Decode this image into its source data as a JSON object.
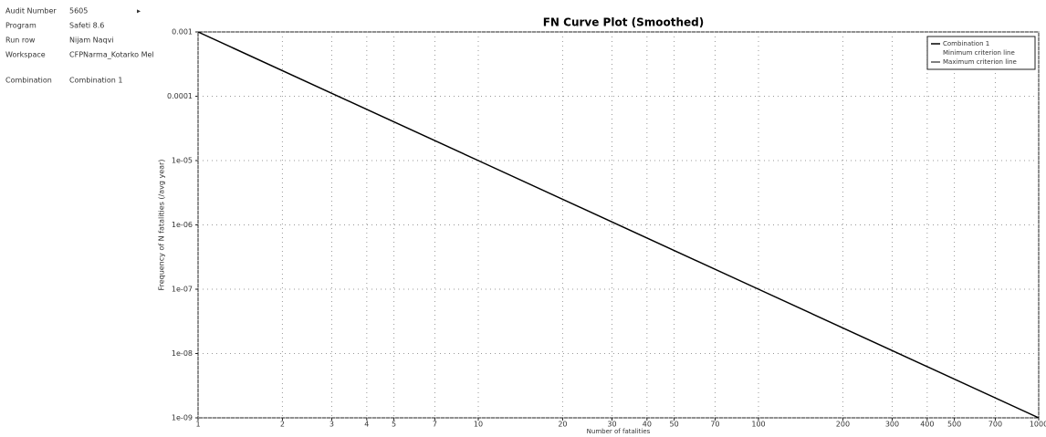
{
  "panel": {
    "rows": [
      {
        "label": "Audit Number",
        "value": "5605"
      },
      {
        "label": "Program",
        "value": "Safeti 8.6"
      },
      {
        "label": "Run row",
        "value": "Nijam Naqvi"
      },
      {
        "label": "Workspace",
        "value": "CFPNarma_Kotarko Mel"
      },
      {
        "label": "Combination",
        "value": "Combination 1"
      }
    ]
  },
  "chart_data": {
    "type": "line",
    "title": "FN Curve Plot (Smoothed)",
    "x_label": "Number of fatalities",
    "y_label": "Frequency of N fatalities (/avg year)",
    "log_x": true,
    "log_y": true,
    "grid": true,
    "xlim": [
      1,
      1000
    ],
    "xticks": [
      1,
      2,
      3,
      4,
      5,
      7,
      10,
      20,
      30,
      40,
      50,
      70,
      100,
      200,
      300,
      400,
      500,
      700,
      1000
    ],
    "ylim": [
      1e-09,
      0.001
    ],
    "yticks": [
      0.001,
      0.0001,
      {
        "value": 1e-05,
        "label": "1e-05"
      },
      {
        "value": 1e-06,
        "label": "1e-06"
      },
      {
        "value": 1e-07,
        "label": "1e-07"
      },
      {
        "value": 1e-08,
        "label": "1e-08"
      },
      {
        "value": 1e-09,
        "label": "1e-09"
      }
    ],
    "legend": "top-right",
    "series": [
      {
        "name": "Combination 1",
        "color": "#000000",
        "x": [
          1,
          10,
          100,
          1000
        ],
        "values": [
          0.001,
          1e-05,
          1e-07,
          1e-09
        ]
      }
    ],
    "legend_extra": [
      {
        "name": "Minimum criterion line",
        "color": "#ffffff"
      },
      {
        "name": "Maximum criterion line",
        "color": "#555555"
      }
    ]
  }
}
